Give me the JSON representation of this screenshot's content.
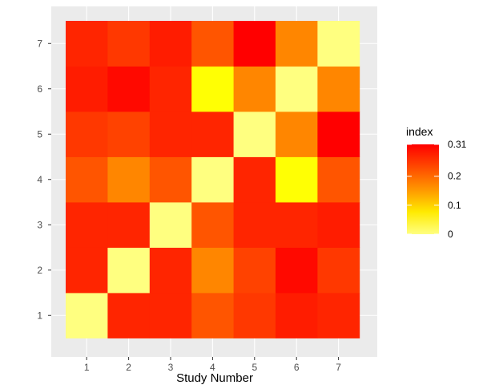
{
  "chart_data": {
    "type": "heatmap",
    "title": "",
    "xlabel": "Study Number",
    "ylabel": "",
    "x_categories": [
      "1",
      "2",
      "3",
      "4",
      "5",
      "6",
      "7"
    ],
    "y_categories": [
      "1",
      "2",
      "3",
      "4",
      "5",
      "6",
      "7"
    ],
    "values": [
      [
        0.0,
        0.27,
        0.27,
        0.22,
        0.25,
        0.28,
        0.27
      ],
      [
        0.27,
        0.0,
        0.27,
        0.17,
        0.24,
        0.3,
        0.25
      ],
      [
        0.27,
        0.27,
        0.0,
        0.22,
        0.27,
        0.27,
        0.28
      ],
      [
        0.22,
        0.17,
        0.22,
        0.0,
        0.27,
        0.06,
        0.22
      ],
      [
        0.25,
        0.24,
        0.27,
        0.27,
        0.0,
        0.17,
        0.31
      ],
      [
        0.28,
        0.3,
        0.27,
        0.06,
        0.17,
        0.0,
        0.17
      ],
      [
        0.27,
        0.25,
        0.28,
        0.22,
        0.31,
        0.17,
        0.0
      ]
    ],
    "legend": {
      "title": "index",
      "range": [
        0,
        0.31
      ],
      "ticks": [
        {
          "value": 0,
          "label": "0"
        },
        {
          "value": 0.1,
          "label": "0.1"
        },
        {
          "value": 0.2,
          "label": "0.2"
        },
        {
          "value": 0.31,
          "label": "0.31"
        }
      ],
      "placement": "right"
    },
    "colors": {
      "low": "#ffff80",
      "mid": "#ffff00",
      "high": "#ff0000",
      "panel": "#ebebeb",
      "grid": "#ffffff"
    }
  }
}
